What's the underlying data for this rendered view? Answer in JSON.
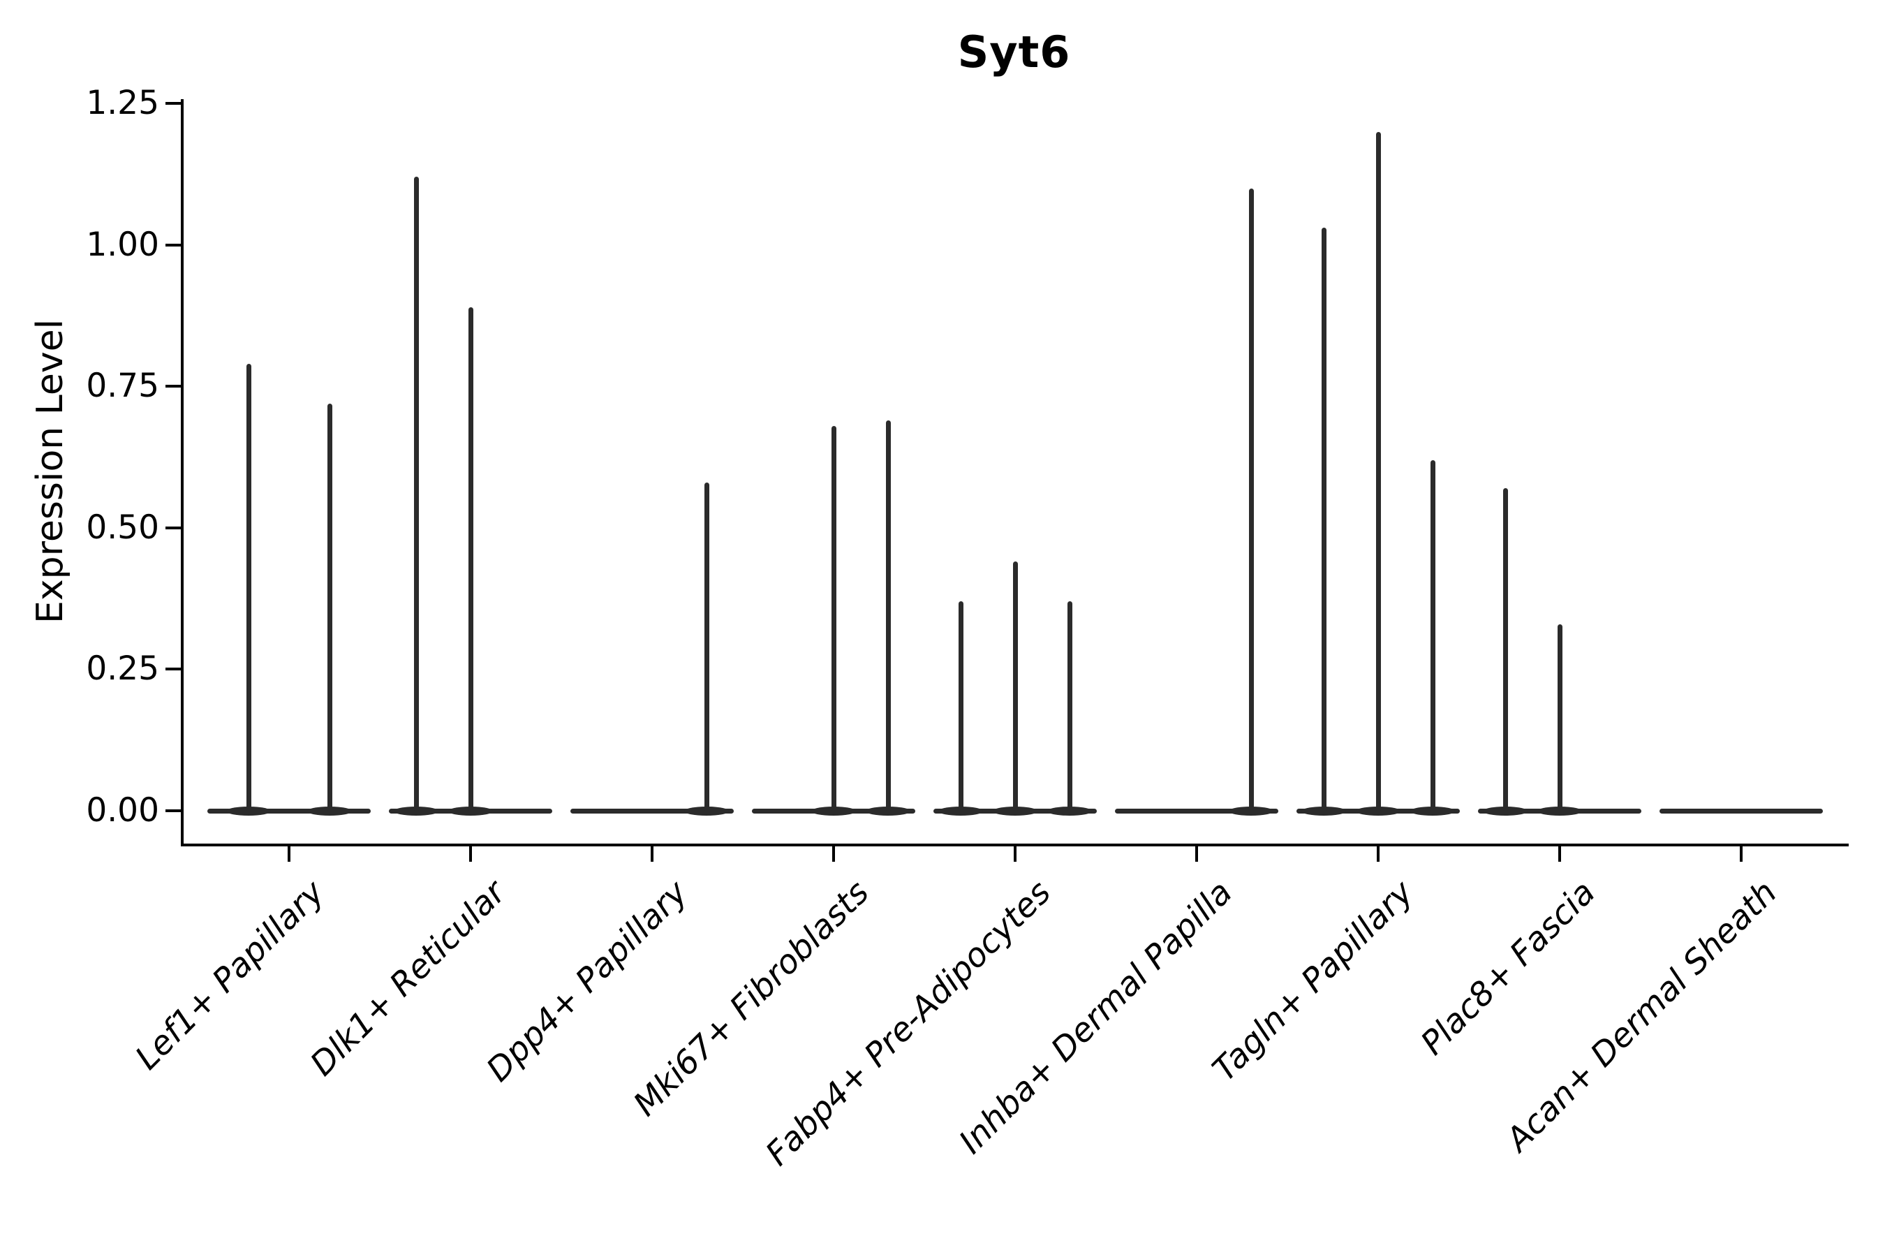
{
  "title": "Syt6",
  "chart_data": {
    "type": "violin",
    "title": "Syt6",
    "xlabel": "",
    "ylabel": "Expression Level",
    "ylim": [
      0,
      1.25
    ],
    "yticks": [
      0,
      0.25,
      0.5,
      0.75,
      1.0,
      1.25
    ],
    "ytick_labels": [
      "0.00",
      "0.25",
      "0.50",
      "0.75",
      "1.00",
      "1.25"
    ],
    "grid": false,
    "legend": "none",
    "violin_color": "#2b2b2b",
    "axis_color": "#000000",
    "categories": [
      "Lef1+ Papillary",
      "Dlk1+ Reticular",
      "Dpp4+ Papillary",
      "Mki67+ Fibroblasts",
      "Fabp4+ Pre-Adipocytes",
      "Inhba+ Dermal Papilla",
      "Tagln+ Papillary",
      "Plac8+ Fascia",
      "Acan+ Dermal Sheath"
    ],
    "groups": [
      {
        "category": "Lef1+ Papillary",
        "spikes": [
          {
            "slot_offset": -58,
            "peak": 0.79
          },
          {
            "slot_offset": 58,
            "peak": 0.72
          }
        ]
      },
      {
        "category": "Dlk1+ Reticular",
        "spikes": [
          {
            "slot_offset": -78,
            "peak": 1.12
          },
          {
            "slot_offset": 0,
            "peak": 0.89
          }
        ]
      },
      {
        "category": "Dpp4+ Papillary",
        "spikes": [
          {
            "slot_offset": 78,
            "peak": 0.58
          }
        ]
      },
      {
        "category": "Mki67+ Fibroblasts",
        "spikes": [
          {
            "slot_offset": 0,
            "peak": 0.68
          },
          {
            "slot_offset": 78,
            "peak": 0.69
          }
        ]
      },
      {
        "category": "Fabp4+ Pre-Adipocytes",
        "spikes": [
          {
            "slot_offset": -78,
            "peak": 0.37
          },
          {
            "slot_offset": 0,
            "peak": 0.44
          },
          {
            "slot_offset": 78,
            "peak": 0.37
          }
        ]
      },
      {
        "category": "Inhba+ Dermal Papilla",
        "spikes": [
          {
            "slot_offset": 78,
            "peak": 1.1
          }
        ]
      },
      {
        "category": "Tagln+ Papillary",
        "spikes": [
          {
            "slot_offset": -78,
            "peak": 1.03
          },
          {
            "slot_offset": 0,
            "peak": 1.2
          },
          {
            "slot_offset": 78,
            "peak": 0.62
          }
        ]
      },
      {
        "category": "Plac8+ Fascia",
        "spikes": [
          {
            "slot_offset": -78,
            "peak": 0.57
          },
          {
            "slot_offset": 0,
            "peak": 0.33
          }
        ]
      },
      {
        "category": "Acan+ Dermal Sheath",
        "spikes": []
      }
    ]
  }
}
